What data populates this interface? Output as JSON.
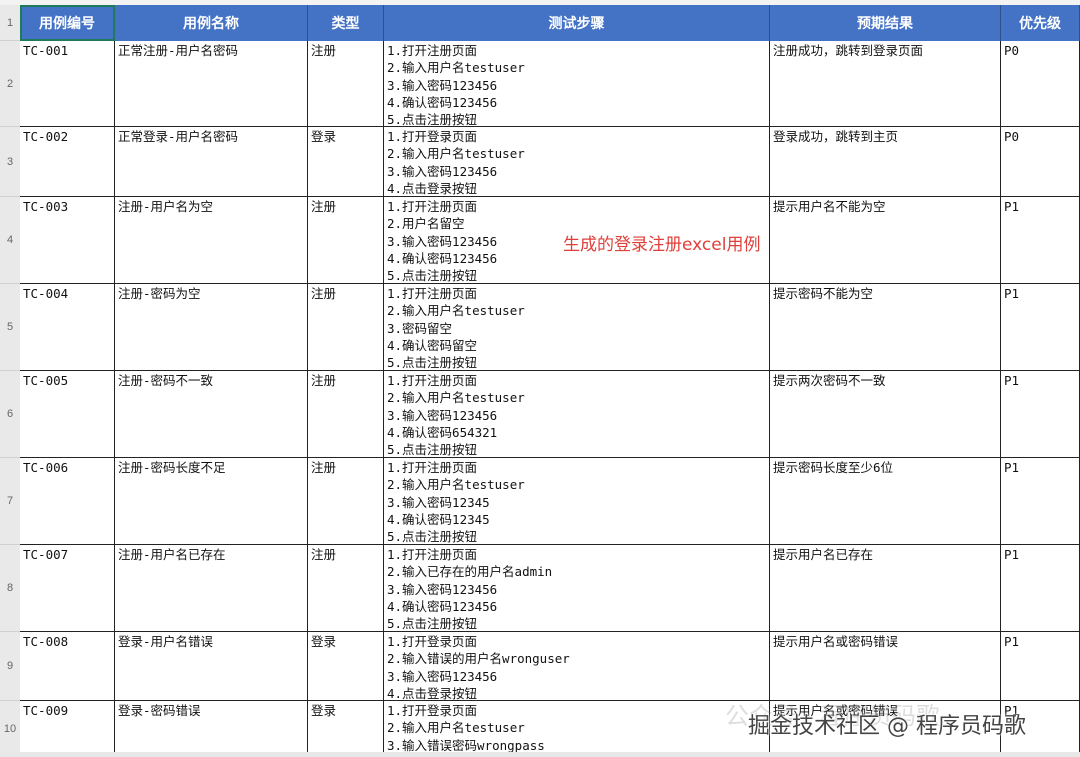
{
  "columns": [
    "用例编号",
    "用例名称",
    "类型",
    "测试步骤",
    "预期结果",
    "优先级"
  ],
  "row_numbers": [
    "1",
    "2",
    "3",
    "4",
    "5",
    "6",
    "7",
    "8",
    "9",
    "10"
  ],
  "rows": [
    {
      "id": "TC-001",
      "name": "正常注册-用户名密码",
      "type": "注册",
      "steps": [
        "1.打开注册页面",
        "2.输入用户名testuser",
        "3.输入密码123456",
        "4.确认密码123456",
        "5.点击注册按钮"
      ],
      "expected": "注册成功，跳转到登录页面",
      "priority": "P0"
    },
    {
      "id": "TC-002",
      "name": "正常登录-用户名密码",
      "type": "登录",
      "steps": [
        "1.打开登录页面",
        "2.输入用户名testuser",
        "3.输入密码123456",
        "4.点击登录按钮"
      ],
      "expected": "登录成功，跳转到主页",
      "priority": "P0"
    },
    {
      "id": "TC-003",
      "name": "注册-用户名为空",
      "type": "注册",
      "steps": [
        "1.打开注册页面",
        "2.用户名留空",
        "3.输入密码123456",
        "4.确认密码123456",
        "5.点击注册按钮"
      ],
      "expected": "提示用户名不能为空",
      "priority": "P1"
    },
    {
      "id": "TC-004",
      "name": "注册-密码为空",
      "type": "注册",
      "steps": [
        "1.打开注册页面",
        "2.输入用户名testuser",
        "3.密码留空",
        "4.确认密码留空",
        "5.点击注册按钮"
      ],
      "expected": "提示密码不能为空",
      "priority": "P1"
    },
    {
      "id": "TC-005",
      "name": "注册-密码不一致",
      "type": "注册",
      "steps": [
        "1.打开注册页面",
        "2.输入用户名testuser",
        "3.输入密码123456",
        "4.确认密码654321",
        "5.点击注册按钮"
      ],
      "expected": "提示两次密码不一致",
      "priority": "P1"
    },
    {
      "id": "TC-006",
      "name": "注册-密码长度不足",
      "type": "注册",
      "steps": [
        "1.打开注册页面",
        "2.输入用户名testuser",
        "3.输入密码12345",
        "4.确认密码12345",
        "5.点击注册按钮"
      ],
      "expected": "提示密码长度至少6位",
      "priority": "P1"
    },
    {
      "id": "TC-007",
      "name": "注册-用户名已存在",
      "type": "注册",
      "steps": [
        "1.打开注册页面",
        "2.输入已存在的用户名admin",
        "3.输入密码123456",
        "4.确认密码123456",
        "5.点击注册按钮"
      ],
      "expected": "提示用户名已存在",
      "priority": "P1"
    },
    {
      "id": "TC-008",
      "name": "登录-用户名错误",
      "type": "登录",
      "steps": [
        "1.打开登录页面",
        "2.输入错误的用户名wronguser",
        "3.输入密码123456",
        "4.点击登录按钮"
      ],
      "expected": "提示用户名或密码错误",
      "priority": "P1"
    },
    {
      "id": "TC-009",
      "name": "登录-密码错误",
      "type": "登录",
      "steps": [
        "1.打开登录页面",
        "2.输入用户名testuser",
        "3.输入错误密码wrongpass"
      ],
      "expected": "提示用户名或密码错误",
      "priority": "P1"
    }
  ],
  "annotation": "生成的登录注册excel用例",
  "watermark": {
    "faint": "公众号 · 程序员码歌",
    "main": "掘金技术社区 @ 程序员码歌"
  },
  "colors": {
    "header_bg": "#4472c4",
    "annotation": "#e0403a",
    "selection": "#1f7a5c"
  }
}
